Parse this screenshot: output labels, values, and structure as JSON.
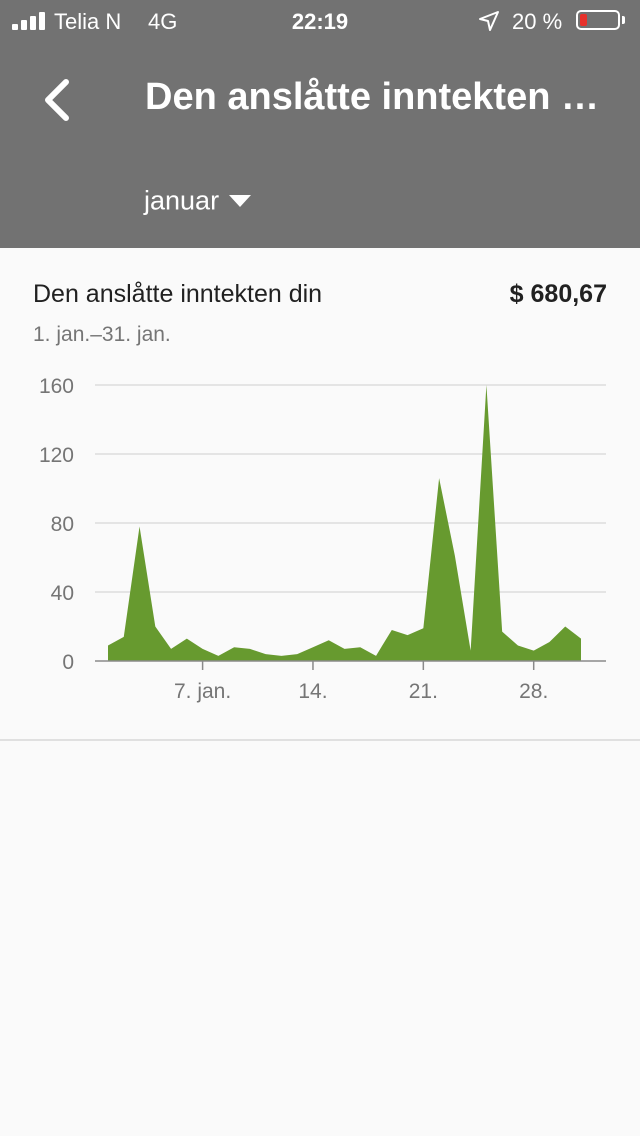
{
  "status_bar": {
    "carrier": "Telia N",
    "network": "4G",
    "time": "22:19",
    "battery_percent": "20 %",
    "battery_level": 0.2,
    "battery_color": "#e8322b",
    "icons": [
      "signal-icon",
      "location-arrow-icon",
      "battery-icon"
    ]
  },
  "app_bar": {
    "title": "Den anslåtte inntekten d...",
    "back_icon": "chevron-left-icon",
    "period_select": {
      "value": "januar",
      "icon": "dropdown-triangle-icon"
    },
    "background": "#727272"
  },
  "card": {
    "title": "Den anslåtte inntekten din",
    "value": "$ 680,67",
    "date_range": "1. jan.–31. jan."
  },
  "chart_data": {
    "type": "area",
    "color": "#679a2f",
    "ylim": [
      0,
      160
    ],
    "y_ticks": [
      0,
      40,
      80,
      120,
      160
    ],
    "x_tick_labels": [
      {
        "day": 7,
        "label": "7. jan."
      },
      {
        "day": 14,
        "label": "14."
      },
      {
        "day": 21,
        "label": "21."
      },
      {
        "day": 28,
        "label": "28."
      }
    ],
    "x": [
      1,
      2,
      3,
      4,
      5,
      6,
      7,
      8,
      9,
      10,
      11,
      12,
      13,
      14,
      15,
      16,
      17,
      18,
      19,
      20,
      21,
      22,
      23,
      24,
      25,
      26,
      27,
      28,
      29,
      30,
      31
    ],
    "values": [
      9,
      14,
      78,
      20,
      7,
      13,
      7,
      3,
      8,
      7,
      4,
      3,
      4,
      8,
      12,
      7,
      8,
      3,
      18,
      15,
      19,
      106,
      61,
      6,
      160,
      17,
      9,
      6,
      11,
      20,
      13
    ]
  }
}
